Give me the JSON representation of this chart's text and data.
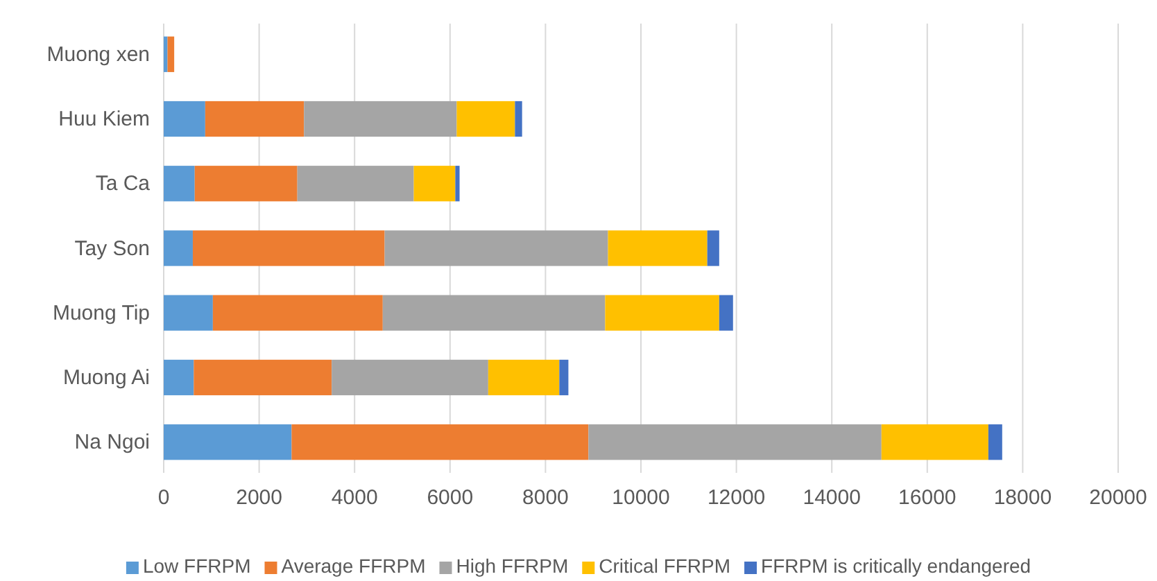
{
  "chart_data": {
    "type": "bar",
    "orientation": "horizontal",
    "stacked": true,
    "categories": [
      "Muong xen",
      "Huu Kiem",
      "Ta Ca",
      "Tay Son",
      "Muong Tip",
      "Muong Ai",
      "Na Ngoi"
    ],
    "series": [
      {
        "name": "Low FFRPM",
        "color": "#5b9bd5",
        "values": [
          80,
          870,
          650,
          610,
          1030,
          630,
          2680
        ]
      },
      {
        "name": "Average FFRPM",
        "color": "#ed7d31",
        "values": [
          140,
          2070,
          2150,
          4020,
          3560,
          2890,
          6220
        ]
      },
      {
        "name": "High FFRPM",
        "color": "#a5a5a5",
        "values": [
          0,
          3200,
          2440,
          4680,
          4660,
          3280,
          6140
        ]
      },
      {
        "name": "Critical FFRPM",
        "color": "#ffc000",
        "values": [
          0,
          1220,
          870,
          2080,
          2390,
          1490,
          2240
        ]
      },
      {
        "name": "FFRPM is critically endangered",
        "color": "#4472c4",
        "values": [
          0,
          150,
          90,
          250,
          290,
          190,
          290
        ]
      }
    ],
    "xlim": [
      0,
      20000
    ],
    "xticks": [
      0,
      2000,
      4000,
      6000,
      8000,
      10000,
      12000,
      14000,
      16000,
      18000,
      20000
    ],
    "grid": "x",
    "legend": "bottom"
  }
}
